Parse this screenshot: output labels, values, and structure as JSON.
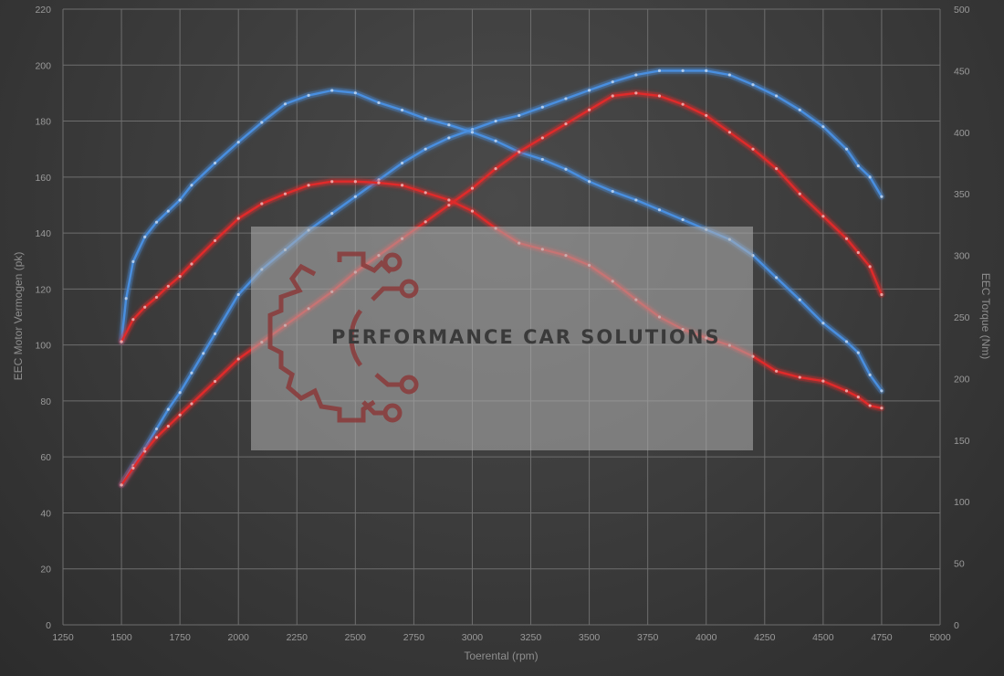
{
  "chart_data": {
    "type": "line",
    "xlabel": "Toerental (rpm)",
    "ylabel": "EEC Motor Vermogen (pk)",
    "y2label": "EEC Torque (Nm)",
    "xlim": [
      1250,
      5000
    ],
    "ylim": [
      0,
      220
    ],
    "y2lim": [
      0,
      500
    ],
    "x_ticks": [
      1250,
      1500,
      1750,
      2000,
      2250,
      2500,
      2750,
      3000,
      3250,
      3500,
      3750,
      4000,
      4250,
      4500,
      4750,
      5000
    ],
    "y_ticks": [
      0,
      20,
      40,
      60,
      80,
      100,
      120,
      140,
      160,
      180,
      200,
      220
    ],
    "y2_ticks": [
      0,
      50,
      100,
      150,
      200,
      250,
      300,
      350,
      400,
      450,
      500
    ],
    "grid": true,
    "series": [
      {
        "id": "power-tuned",
        "axis": "left",
        "color": "#4a8fe0",
        "x": [
          1500,
          1550,
          1600,
          1650,
          1700,
          1750,
          1800,
          1850,
          1900,
          2000,
          2100,
          2200,
          2300,
          2400,
          2500,
          2600,
          2700,
          2800,
          2900,
          3000,
          3100,
          3200,
          3300,
          3400,
          3500,
          3600,
          3700,
          3800,
          3900,
          4000,
          4100,
          4200,
          4300,
          4400,
          4500,
          4600,
          4650,
          4700,
          4750
        ],
        "y": [
          50,
          57,
          63,
          70,
          77,
          83,
          90,
          97,
          104,
          118,
          127,
          134,
          141,
          147,
          153,
          159,
          165,
          170,
          174,
          177,
          180,
          182,
          185,
          188,
          191,
          194,
          196.5,
          198,
          198,
          198,
          196.5,
          193,
          189,
          184,
          178,
          170,
          164,
          160,
          153
        ]
      },
      {
        "id": "torque-tuned",
        "axis": "right",
        "color": "#4a8fe0",
        "x": [
          1500,
          1520,
          1550,
          1600,
          1650,
          1700,
          1750,
          1800,
          1900,
          2000,
          2100,
          2200,
          2300,
          2400,
          2500,
          2600,
          2700,
          2800,
          2900,
          3000,
          3100,
          3200,
          3300,
          3400,
          3500,
          3600,
          3700,
          3800,
          3900,
          4000,
          4100,
          4200,
          4300,
          4400,
          4500,
          4600,
          4650,
          4700,
          4750
        ],
        "y": [
          230,
          265,
          295,
          315,
          327,
          336,
          345,
          357,
          375,
          392,
          408,
          423,
          430,
          434,
          432,
          424,
          418,
          411,
          406,
          400,
          393,
          384,
          378,
          370,
          360,
          352,
          345,
          337,
          329,
          321,
          313,
          300,
          282,
          264,
          245,
          230,
          221,
          203,
          190
        ]
      },
      {
        "id": "power-stock",
        "axis": "left",
        "color": "#e02a2a",
        "x": [
          1500,
          1550,
          1600,
          1650,
          1700,
          1750,
          1800,
          1900,
          2000,
          2100,
          2200,
          2300,
          2400,
          2500,
          2600,
          2700,
          2800,
          2900,
          3000,
          3100,
          3200,
          3300,
          3400,
          3500,
          3600,
          3700,
          3800,
          3900,
          4000,
          4100,
          4200,
          4300,
          4400,
          4500,
          4600,
          4650,
          4700,
          4750
        ],
        "y": [
          50,
          56,
          62,
          67,
          71,
          75,
          79,
          87,
          95,
          101,
          107,
          113,
          119,
          126,
          132,
          138,
          144,
          150,
          156,
          163,
          169,
          174,
          179,
          184,
          189,
          190,
          189,
          186,
          182,
          176,
          170,
          163,
          154,
          146,
          138,
          133,
          128,
          118
        ]
      },
      {
        "id": "torque-stock",
        "axis": "right",
        "color": "#e02a2a",
        "x": [
          1500,
          1550,
          1600,
          1650,
          1700,
          1750,
          1800,
          1900,
          2000,
          2100,
          2200,
          2300,
          2400,
          2500,
          2600,
          2700,
          2800,
          2900,
          3000,
          3100,
          3200,
          3300,
          3400,
          3500,
          3600,
          3700,
          3800,
          3900,
          4000,
          4100,
          4200,
          4300,
          4400,
          4500,
          4600,
          4650,
          4700,
          4750
        ],
        "y": [
          230,
          248,
          258,
          266,
          275,
          283,
          293,
          312,
          330,
          342,
          350,
          357,
          360,
          360,
          359,
          357,
          351,
          345,
          336,
          322,
          310,
          305,
          300,
          292,
          279,
          264,
          250,
          240,
          233,
          227,
          218,
          206,
          201,
          198,
          190,
          185,
          178,
          176
        ]
      }
    ]
  },
  "watermark": {
    "text": "PERFORMANCE CAR SOLUTIONS",
    "logo_icon": "gear-circuit-icon",
    "logo_color": "#8a3a3a"
  }
}
